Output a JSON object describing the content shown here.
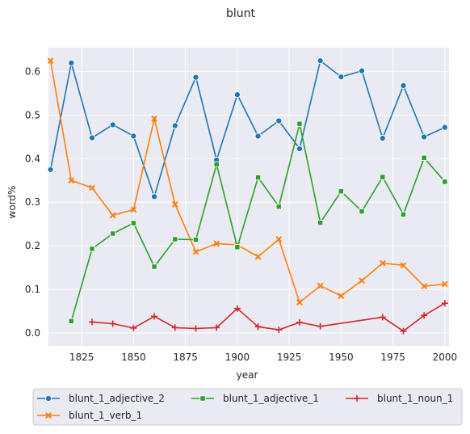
{
  "chart_data": {
    "type": "line",
    "title": "blunt",
    "xlabel": "year",
    "ylabel": "word%",
    "xlim": [
      1809,
      2002
    ],
    "ylim": [
      -0.03,
      0.655
    ],
    "xticks": [
      1825,
      1850,
      1875,
      1900,
      1925,
      1950,
      1975,
      2000
    ],
    "yticks": [
      0.0,
      0.1,
      0.2,
      0.3,
      0.4,
      0.5,
      0.6
    ],
    "ytick_labels": [
      "0.0",
      "0.1",
      "0.2",
      "0.3",
      "0.4",
      "0.5",
      "0.6"
    ],
    "grid": true,
    "legend_position": "bottom-center",
    "series": [
      {
        "name": "blunt_1_adjective_2",
        "color": "#1f77b4",
        "marker": "circle",
        "x": [
          1810,
          1820,
          1830,
          1840,
          1850,
          1860,
          1870,
          1880,
          1890,
          1900,
          1910,
          1920,
          1930,
          1940,
          1950,
          1960,
          1970,
          1980,
          1990,
          2000
        ],
        "y": [
          0.375,
          0.62,
          0.448,
          0.478,
          0.452,
          0.313,
          0.476,
          0.587,
          0.397,
          0.547,
          0.452,
          0.487,
          0.423,
          0.625,
          0.588,
          0.602,
          0.447,
          0.568,
          0.45,
          0.472
        ]
      },
      {
        "name": "blunt_1_verb_1",
        "color": "#ff7f0e",
        "marker": "x",
        "x": [
          1810,
          1820,
          1830,
          1840,
          1850,
          1860,
          1870,
          1880,
          1890,
          1900,
          1910,
          1920,
          1930,
          1940,
          1950,
          1960,
          1970,
          1980,
          1990,
          2000
        ],
        "y": [
          0.625,
          0.35,
          0.333,
          0.27,
          0.283,
          0.492,
          0.295,
          0.186,
          0.205,
          0.202,
          0.175,
          0.215,
          0.07,
          0.108,
          0.085,
          0.12,
          0.16,
          0.155,
          0.107,
          0.112
        ]
      },
      {
        "name": "blunt_1_adjective_1",
        "color": "#2ca02c",
        "marker": "square",
        "x": [
          1820,
          1830,
          1840,
          1850,
          1860,
          1870,
          1880,
          1890,
          1900,
          1910,
          1920,
          1930,
          1940,
          1950,
          1960,
          1970,
          1980,
          1990,
          2000
        ],
        "y": [
          0.027,
          0.193,
          0.228,
          0.252,
          0.152,
          0.215,
          0.214,
          0.387,
          0.197,
          0.357,
          0.29,
          0.48,
          0.253,
          0.325,
          0.279,
          0.358,
          0.272,
          0.402,
          0.347
        ]
      },
      {
        "name": "blunt_1_noun_1",
        "color": "#d62728",
        "marker": "plus",
        "x": [
          1830,
          1840,
          1850,
          1860,
          1870,
          1880,
          1890,
          1900,
          1910,
          1920,
          1930,
          1940,
          1970,
          1980,
          1990,
          2000
        ],
        "y": [
          0.025,
          0.021,
          0.011,
          0.038,
          0.012,
          0.01,
          0.012,
          0.056,
          0.014,
          0.007,
          0.024,
          0.015,
          0.036,
          0.004,
          0.04,
          0.068
        ]
      }
    ]
  }
}
